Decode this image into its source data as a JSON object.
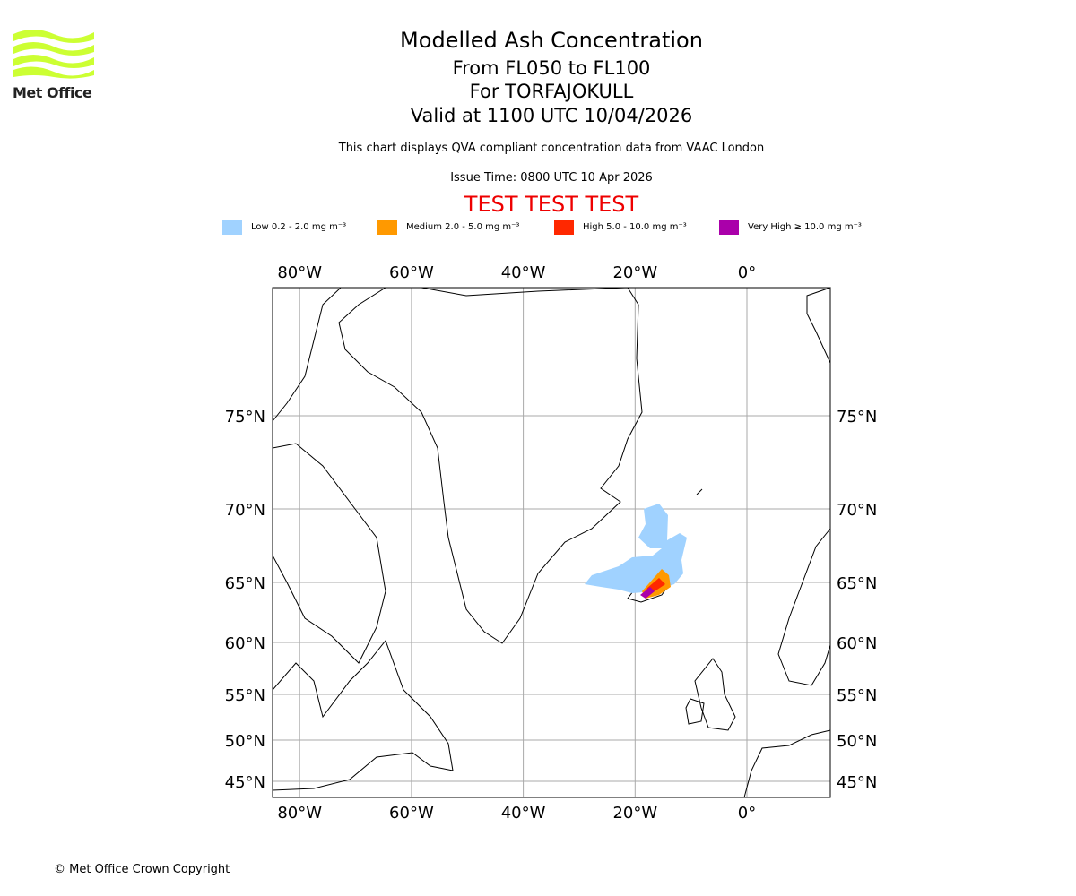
{
  "logo": {
    "text": "Met Office",
    "color": "#ccff33"
  },
  "header": {
    "title": "Modelled Ash Concentration",
    "levels": "From FL050 to FL100",
    "volcano": "For TORFAJOKULL",
    "valid": "Valid at 1100 UTC 10/04/2026",
    "description": "This chart displays QVA compliant concentration data from VAAC London",
    "issue_time": "Issue Time: 0800 UTC 10 Apr 2026",
    "test_banner": "TEST TEST TEST"
  },
  "legend": [
    {
      "label": "Low 0.2 - 2.0 mg m⁻³",
      "color": "#a0d2ff"
    },
    {
      "label": "Medium 2.0 - 5.0 mg m⁻³",
      "color": "#ff9900"
    },
    {
      "label": "High 5.0 - 10.0 mg m⁻³",
      "color": "#ff2800"
    },
    {
      "label": "Very High ≥ 10.0 mg m⁻³",
      "color": "#aa00aa"
    }
  ],
  "map": {
    "lon_ticks": [
      {
        "value": -80,
        "label": "80°W"
      },
      {
        "value": -60,
        "label": "60°W"
      },
      {
        "value": -40,
        "label": "40°W"
      },
      {
        "value": -20,
        "label": "20°W"
      },
      {
        "value": 0,
        "label": "0°"
      }
    ],
    "lat_ticks": [
      {
        "value": 75,
        "label": "75°N"
      },
      {
        "value": 70,
        "label": "70°N"
      },
      {
        "value": 65,
        "label": "65°N"
      },
      {
        "value": 60,
        "label": "60°N"
      },
      {
        "value": 55,
        "label": "55°N"
      },
      {
        "value": 50,
        "label": "50°N"
      },
      {
        "value": 45,
        "label": "45°N"
      }
    ]
  },
  "footer": {
    "copyright": "© Met Office Crown Copyright"
  }
}
